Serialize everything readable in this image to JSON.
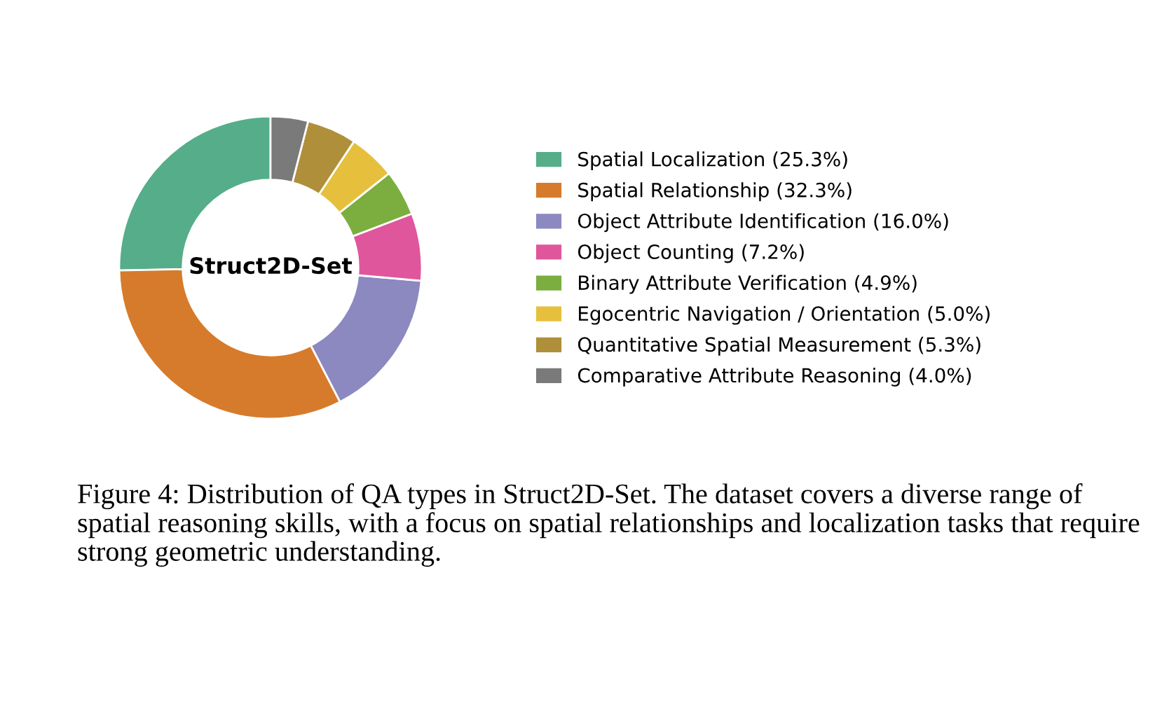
{
  "chart_data": {
    "type": "donut",
    "title": "Struct2D-Set",
    "categories": [
      "Spatial Localization (25.3%)",
      "Spatial Relationship (32.3%)",
      "Object Attribute Identification (16.0%)",
      "Object Counting (7.2%)",
      "Binary Attribute Verification (4.9%)",
      "Egocentric Navigation / Orientation (5.0%)",
      "Quantitative Spatial Measurement (5.3%)",
      "Comparative Attribute Reasoning (4.0%)"
    ],
    "values": [
      25.3,
      32.3,
      16.0,
      7.2,
      4.9,
      5.0,
      5.3,
      4.0
    ],
    "colors": [
      "#55ad89",
      "#d67b2b",
      "#8c88c0",
      "#e0569c",
      "#7cae3f",
      "#e6c03c",
      "#b08f3a",
      "#7a7a7a"
    ],
    "legend": "right",
    "annotations": [
      "Figure 4: Distribution of QA types in Struct2D-Set. The dataset covers a diverse range of spatial reasoning skills, with a focus on spatial relationships and localization tasks that require strong geometric understanding."
    ]
  }
}
